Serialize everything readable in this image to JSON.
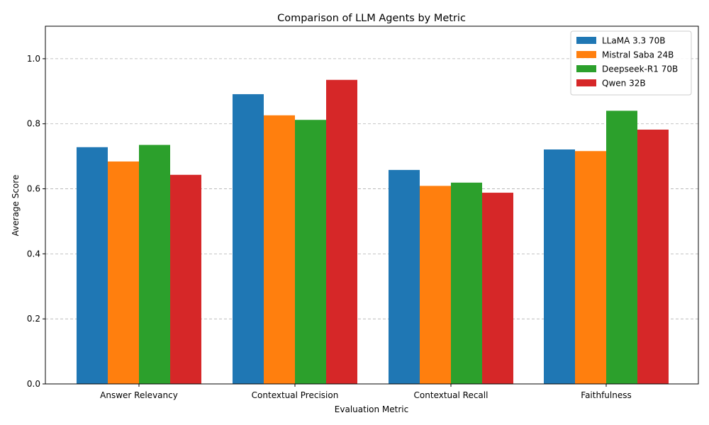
{
  "chart_data": {
    "type": "bar",
    "title": "Comparison of LLM Agents by Metric",
    "xlabel": "Evaluation Metric",
    "ylabel": "Average Score",
    "ylim": [
      0,
      1.1
    ],
    "yticks": [
      0.0,
      0.2,
      0.4,
      0.6,
      0.8,
      1.0
    ],
    "ytick_labels": [
      "0.0",
      "0.2",
      "0.4",
      "0.6",
      "0.8",
      "1.0"
    ],
    "grid": "y-dashed",
    "legend_position": "top-right",
    "categories": [
      "Answer Relevancy",
      "Contextual Precision",
      "Contextual Recall",
      "Faithfulness"
    ],
    "series": [
      {
        "name": "LLaMA 3.3 70B",
        "color": "#1f77b4",
        "values": [
          0.728,
          0.891,
          0.658,
          0.721
        ]
      },
      {
        "name": "Mistral Saba 24B",
        "color": "#ff7f0e",
        "values": [
          0.684,
          0.826,
          0.609,
          0.716
        ]
      },
      {
        "name": "Deepseek-R1 70B",
        "color": "#2ca02c",
        "values": [
          0.735,
          0.812,
          0.619,
          0.84
        ]
      },
      {
        "name": "Qwen 32B",
        "color": "#d62728",
        "values": [
          0.643,
          0.935,
          0.588,
          0.782
        ]
      }
    ]
  }
}
